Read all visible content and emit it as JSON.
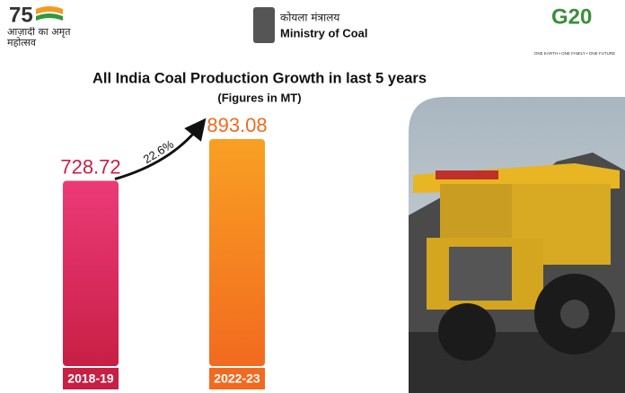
{
  "header": {
    "left_logo": "आज़ादी का अमृत महोत्सव",
    "left_number": "75",
    "ministry_hindi": "कोयला मंत्रालय",
    "ministry": "Ministry of Coal",
    "right_logo": "G20",
    "right_tagline": "ONE EARTH • ONE FAMILY • ONE FUTURE"
  },
  "chart_data": {
    "type": "bar",
    "title": "All India Coal Production Growth in last 5 years",
    "subtitle": "(Figures in MT)",
    "categories": [
      "2018-19",
      "2022-23"
    ],
    "values": [
      728.72,
      893.08
    ],
    "colors": [
      [
        "#ec3a78",
        "#c81f45"
      ],
      [
        "#f8a023",
        "#f26a1f"
      ]
    ],
    "annotation": "22.6%"
  }
}
